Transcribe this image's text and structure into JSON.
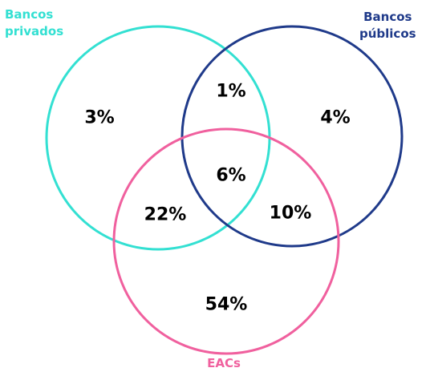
{
  "sets": [
    {
      "key": "privados",
      "label_lines": [
        "Bancos",
        "privados"
      ],
      "color": "#33E0D2"
    },
    {
      "key": "publicos",
      "label_lines": [
        "Bancos",
        "públicos"
      ],
      "color": "#1F3A8A"
    },
    {
      "key": "eacs",
      "label_lines": [
        "EACs"
      ],
      "color": "#F0609E"
    }
  ],
  "regions": {
    "privados_only": "3%",
    "publicos_only": "4%",
    "privados_publicos": "1%",
    "all_three": "6%",
    "privados_eacs": "22%",
    "publicos_eacs": "10%",
    "eacs_only": "54%"
  }
}
